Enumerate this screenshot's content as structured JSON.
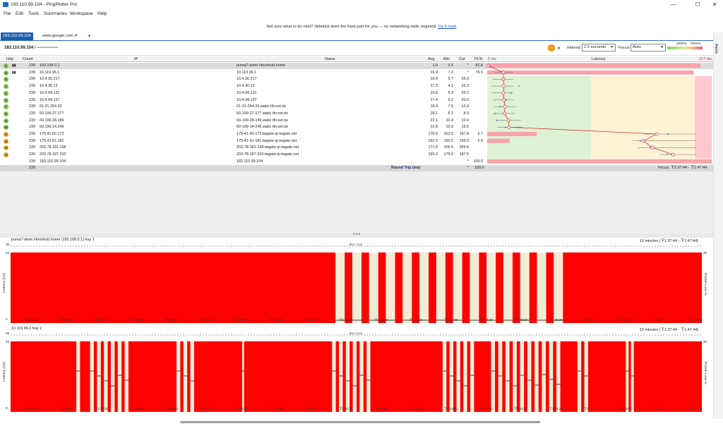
{
  "window": {
    "title": "183.110.99.104 - PingPlotter Pro",
    "min": "—",
    "max": "☐",
    "close": "✕"
  },
  "menu": [
    "File",
    "Edit",
    "Tools",
    "Summaries",
    "Workspace",
    "Help"
  ],
  "banner": {
    "text": "Not sure what to do next? Sidekick does the hard part for you — no networking skills required.",
    "link": "Try it now!"
  },
  "tabs": {
    "active": "183.110.99.104",
    "second": "www.google.com ✔",
    "add": "+"
  },
  "target": {
    "label": "183.110.99.104 / ---------------",
    "interval_label": "Interval",
    "interval": "2.5 seconds",
    "focus_label": "Focus",
    "focus": "Auto",
    "scale_100": "100ms",
    "scale_200": "200ms",
    "alerts": "Alerts"
  },
  "table": {
    "headers": {
      "hop": "Hop",
      "count": "Count",
      "ip": "IP",
      "name": "Name",
      "avg": "Avg",
      "min": "Min",
      "cur": "Cur",
      "pl": "PL%",
      "zero_ms": "0 ms",
      "latency": "Latency",
      "max_ms": "217 ms"
    },
    "rows": [
      {
        "hop": "1",
        "count": "239",
        "ip": "192.168.0.1",
        "name": "puma7-atom.hitronhub.home",
        "avg": "1.0",
        "min": "0.5",
        "cur": "*",
        "pl": "82.8",
        "color": "#7ec44f",
        "plbar": 0.95
      },
      {
        "hop": "2",
        "count": "239",
        "ip": "10.119.96.1",
        "name": "10.119.96.1",
        "avg": "16.9",
        "min": "7.3",
        "cur": "*",
        "pl": "79.1",
        "color": "#7ec44f",
        "plbar": 0.92
      },
      {
        "hop": "3",
        "count": "239",
        "ip": "10.4.30.217",
        "name": "10.4.30.217",
        "avg": "16.9",
        "min": "5.7",
        "cur": "15.9",
        "pl": "",
        "color": "#7ec44f",
        "plbar": 0
      },
      {
        "hop": "4",
        "count": "239",
        "ip": "10.4.30.13",
        "name": "10.4.30.13",
        "avg": "17.3",
        "min": "4.1",
        "cur": "33.3",
        "pl": "",
        "color": "#7ec44f",
        "plbar": 0
      },
      {
        "hop": "5",
        "count": "239",
        "ip": "10.4.94.131",
        "name": "10.4.94.131",
        "avg": "16.8",
        "min": "5.3",
        "cur": "25.2",
        "pl": "",
        "color": "#7ec44f",
        "plbar": 0
      },
      {
        "hop": "6",
        "count": "239",
        "ip": "10.4.94.137",
        "name": "10.4.94.137",
        "avg": "17.4",
        "min": "6.2",
        "cur": "20.0",
        "pl": "",
        "color": "#7ec44f",
        "plbar": 0
      },
      {
        "hop": "7",
        "count": "239",
        "ip": "61.31.254.33",
        "name": "61-31-254-33.static.tfn.net.tw",
        "avg": "18.4",
        "min": "7.5",
        "cur": "13.9",
        "pl": "",
        "color": "#7ec44f",
        "plbar": 0
      },
      {
        "hop": "8",
        "count": "239",
        "ip": "60.199.27.177",
        "name": "60-199-27-177.static.tfn.net.tw",
        "avg": "18.1",
        "min": "6.1",
        "cur": "8.9",
        "pl": "",
        "color": "#7ec44f",
        "plbar": 0
      },
      {
        "hop": "9",
        "count": "239",
        "ip": "60.199.28.189",
        "name": "60-199-28-189.static.tfn.net.tw",
        "avg": "22.1",
        "min": "10.4",
        "cur": "10.4",
        "pl": "",
        "color": "#7ec44f",
        "plbar": 0
      },
      {
        "hop": "10",
        "count": "239",
        "ip": "60.199.14.245",
        "name": "60-199-14-245.static.tfn.net.tw",
        "avg": "22.8",
        "min": "10.3",
        "cur": "19.5",
        "pl": "",
        "color": "#7ec44f",
        "plbar": 0
      },
      {
        "hop": "11",
        "count": "239",
        "ip": "175.41.60.173",
        "name": "175-41-60-173.twgate-ip.twgate.net",
        "avg": "176.0",
        "min": "163.5",
        "cur": "187.8",
        "pl": "6.7",
        "color": "#f0a830",
        "plbar": 0.22
      },
      {
        "hop": "12",
        "count": "239",
        "ip": "175.41.61.181",
        "name": "175-41-61-181.twgate-ip.twgate.net",
        "avg": "162.0",
        "min": "150.5",
        "cur": "159.3",
        "pl": "2.9",
        "color": "#f0a830",
        "plbar": 0.1
      },
      {
        "hop": "13",
        "count": "239",
        "ip": "203.78.181.198",
        "name": "203-78-181-198.twgate-ip.twgate.net",
        "avg": "171.6",
        "min": "156.5",
        "cur": "169.5",
        "pl": "",
        "color": "#f0a830",
        "plbar": 0
      },
      {
        "hop": "14",
        "count": "239",
        "ip": "203.78.187.210",
        "name": "203-78-187-210.twgate-ip.twgate.net",
        "avg": "193.2",
        "min": "179.0",
        "cur": "187.5",
        "pl": "",
        "color": "#f0a830",
        "plbar": 0
      },
      {
        "hop": "",
        "count": "239",
        "ip": "183.110.99.104",
        "name": "183.110.99.104",
        "avg": "",
        "min": "",
        "cur": "*",
        "pl": "100.0",
        "color": "",
        "plbar": 1.0
      }
    ],
    "total": {
      "count": "239",
      "label": "Round Trip (ms)",
      "cur": "*",
      "pl": "100.0",
      "focus": "Focus: 下1:37:44 - 下1:47:44"
    }
  },
  "panes": [
    {
      "title": "puma7-atom.hitronhub.home (192.168.0.1) hop 1",
      "range": "10 minutes (下1:37:44 - 下1:47:44)",
      "jitter": "Jitter (ms)",
      "y_top": "35",
      "y_label": "Latency (ms)",
      "y_max": "40",
      "y_zero": "0",
      "pl_label": "Packet Loss %",
      "pl_max": "30"
    },
    {
      "title": "10.119.96.1 hop 2",
      "range": "10 minutes (下1:37:44 - 下1:47:44)",
      "jitter": "Jitter (ms)",
      "y_top": "35",
      "y_label": "Latency (ms)",
      "y_max": "40",
      "y_zero": "0",
      "pl_label": "Packet Loss %",
      "pl_max": "30"
    }
  ],
  "time_ticks": [
    "下1:38:00",
    "下1:38:30",
    "下1:39:00",
    "下1:39:30",
    "下1:40:00",
    "下1:40:30",
    "下1:41:00",
    "下1:41:30",
    "下1:42:00",
    "下1:42:30",
    "下1:43:00",
    "下1:43:30",
    "下1:44:00",
    "下1:44:30",
    "下1:45:00",
    "下1:45:30",
    "下1:46",
    "下1:46:30",
    "下1:47",
    "下1:47:30"
  ]
}
